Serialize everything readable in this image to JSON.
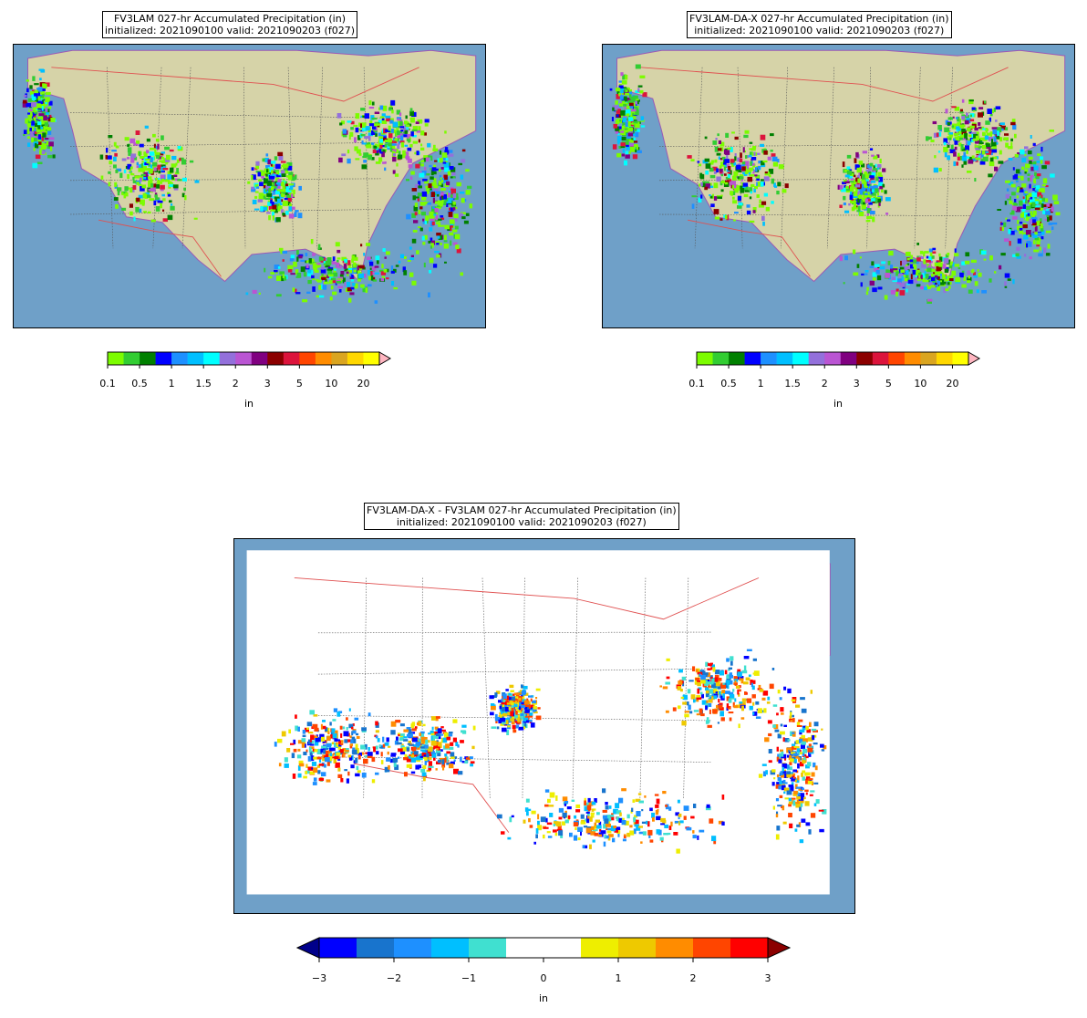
{
  "panels": [
    {
      "id": "fv3lam",
      "title_line1": "FV3LAM 027-hr Accumulated Precipitation (in)",
      "title_line2": "initialized: 2021090100 valid: 2021090203 (f027)"
    },
    {
      "id": "fv3lam-da-x",
      "title_line1": "FV3LAM-DA-X 027-hr Accumulated Precipitation (in)",
      "title_line2": "initialized: 2021090100 valid: 2021090203 (f027)"
    },
    {
      "id": "difference",
      "title_line1": "FV3LAM-DA-X - FV3LAM 027-hr Accumulated Precipitation (in)",
      "title_line2": "initialized: 2021090100 valid: 2021090203 (f027)"
    }
  ],
  "precip_colorbar": {
    "unit": "in",
    "tick_labels": [
      "0.1",
      "0.5",
      "1",
      "1.5",
      "2",
      "3",
      "5",
      "10",
      "20"
    ],
    "colors": [
      "#7cfc00",
      "#32cd32",
      "#008000",
      "#0000ff",
      "#1e90ff",
      "#00bfff",
      "#00ffff",
      "#9370db",
      "#ba55d3",
      "#800080",
      "#8b0000",
      "#dc143c",
      "#ff4500",
      "#ff8c00",
      "#daa520",
      "#ffd700",
      "#ffff00"
    ],
    "extend_color": "#ffb6c1"
  },
  "diff_colorbar": {
    "unit": "in",
    "tick_labels": [
      "−3",
      "−2",
      "−1",
      "0",
      "1",
      "2",
      "3"
    ],
    "colors": [
      "#0000ff",
      "#1874cd",
      "#1e90ff",
      "#00bfff",
      "#40e0d0",
      "#ffffff",
      "#ffffff",
      "#eeee00",
      "#eec900",
      "#ff8c00",
      "#ff4500",
      "#ff0000"
    ],
    "low_extend_color": "#00008b",
    "high_extend_color": "#8b0000"
  },
  "map_colors": {
    "ocean": "#6fa0c8",
    "land": "#d6d3a8",
    "state_border": "#555555",
    "country_border": "#e05050",
    "coast": "#9b59b6"
  }
}
